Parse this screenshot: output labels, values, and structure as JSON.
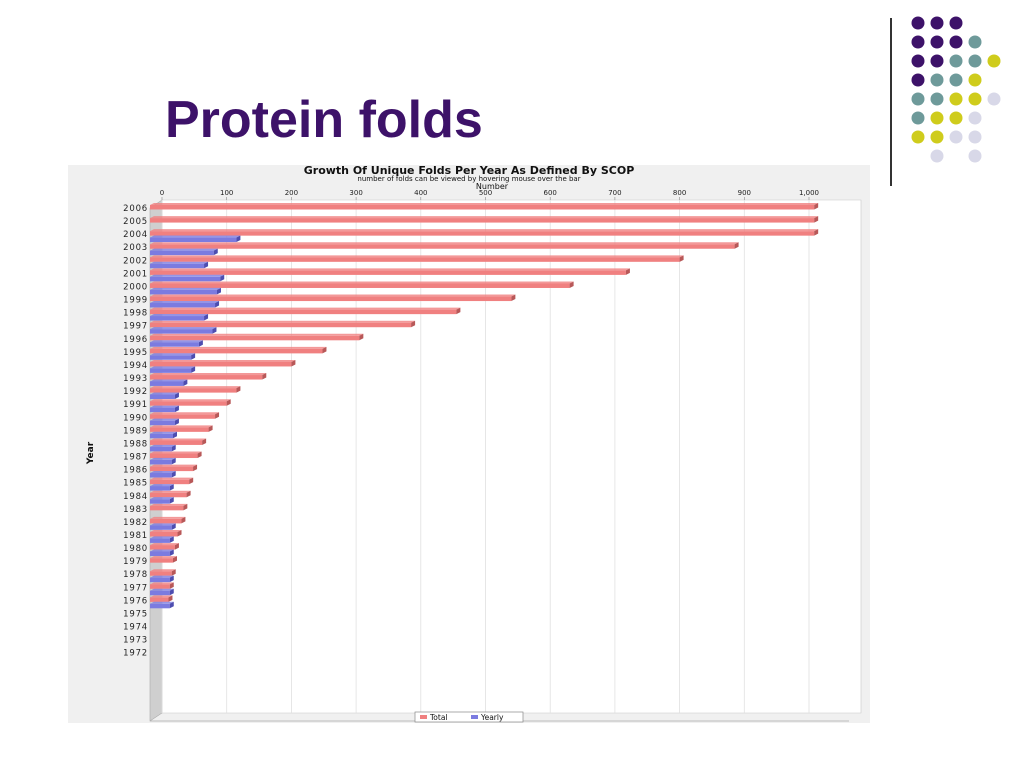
{
  "slide": {
    "title": "Protein folds",
    "dot_grid": [
      [
        "#3d1269",
        "#3d1269",
        "#3d1269",
        "",
        "",
        ""
      ],
      [
        "#3d1269",
        "#3d1269",
        "#3d1269",
        "#6e9a9a",
        "",
        ""
      ],
      [
        "#3d1269",
        "#3d1269",
        "#6e9a9a",
        "#6e9a9a",
        "#cfcc1c",
        ""
      ],
      [
        "#3d1269",
        "#6e9a9a",
        "#6e9a9a",
        "#cfcc1c",
        "",
        ""
      ],
      [
        "#6e9a9a",
        "#6e9a9a",
        "#cfcc1c",
        "#cfcc1c",
        "#d8d8e8",
        ""
      ],
      [
        "#6e9a9a",
        "#cfcc1c",
        "#cfcc1c",
        "#d8d8e8",
        "",
        ""
      ],
      [
        "#cfcc1c",
        "#cfcc1c",
        "#d8d8e8",
        "#d8d8e8",
        "",
        ""
      ],
      [
        "",
        "#d8d8e8",
        "",
        "#d8d8e8",
        "",
        ""
      ]
    ]
  },
  "chart_data": {
    "type": "bar",
    "orientation": "horizontal",
    "title": "Growth Of Unique Folds Per Year As Defined By SCOP",
    "subtitle": "number of folds can be viewed by hovering mouse over the bar",
    "xlabel": "Number",
    "ylabel": "Year",
    "xlim": [
      0,
      1000
    ],
    "xticks": [
      0,
      100,
      200,
      300,
      400,
      500,
      600,
      700,
      800,
      900,
      1000
    ],
    "xtick_labels": [
      "0",
      "100",
      "200",
      "300",
      "400",
      "500",
      "600",
      "700",
      "800",
      "900",
      "1,000"
    ],
    "grid": true,
    "legend_position": "bottom",
    "categories": [
      "2006",
      "2005",
      "2004",
      "2003",
      "2002",
      "2001",
      "2000",
      "1999",
      "1998",
      "1997",
      "1996",
      "1995",
      "1994",
      "1993",
      "1992",
      "1991",
      "1990",
      "1989",
      "1988",
      "1987",
      "1986",
      "1985",
      "1984",
      "1983",
      "1982",
      "1981",
      "1980",
      "1979",
      "1978",
      "1977",
      "1976",
      "1975",
      "1974",
      "1973",
      "1972"
    ],
    "series": [
      {
        "name": "Total",
        "color": "#f08080",
        "values": [
          1008,
          1008,
          1008,
          885,
          800,
          717,
          630,
          540,
          455,
          385,
          305,
          248,
          200,
          155,
          115,
          100,
          82,
          72,
          62,
          55,
          48,
          42,
          38,
          33,
          30,
          24,
          20,
          17,
          15,
          12,
          10,
          0,
          0,
          0,
          0
        ]
      },
      {
        "name": "Yearly",
        "color": "#7b7be0",
        "values": [
          0,
          0,
          115,
          80,
          65,
          90,
          85,
          82,
          65,
          78,
          57,
          45,
          45,
          33,
          20,
          20,
          20,
          17,
          15,
          15,
          15,
          12,
          12,
          0,
          15,
          12,
          12,
          0,
          12,
          12,
          12,
          0,
          0,
          0,
          0
        ]
      }
    ]
  }
}
